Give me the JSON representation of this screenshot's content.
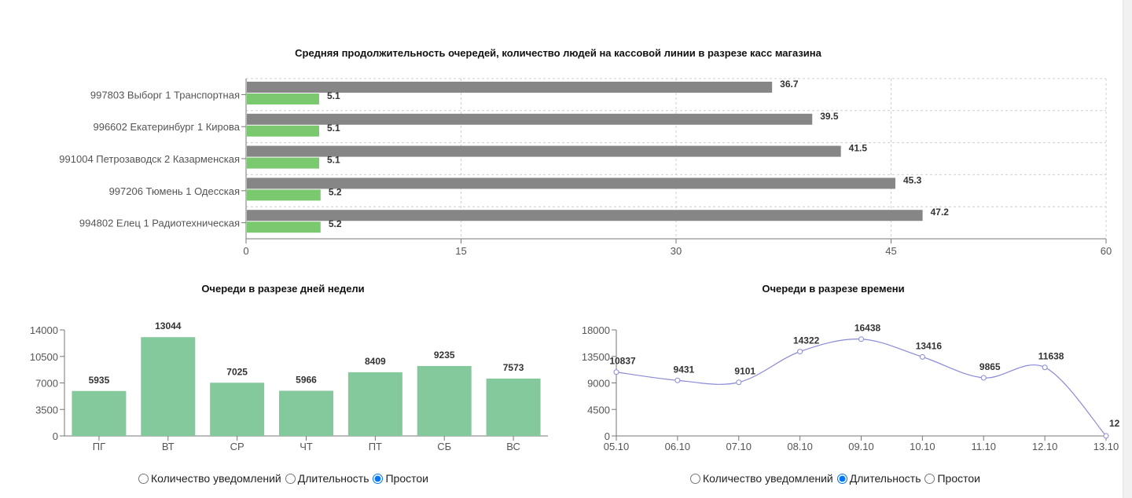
{
  "charts": {
    "top": {
      "title": "Средняя продолжительность очередей, количество людей на кассовой линии в разрезе касс магазина"
    },
    "days": {
      "title": "Очереди в разрезе дней недели"
    },
    "time": {
      "title": "Очереди в разрезе времени"
    }
  },
  "radios_days": {
    "opt1": "Количество уведомлений",
    "opt2": "Длительность",
    "opt3": "Простои",
    "selected": "opt3"
  },
  "radios_time": {
    "opt1": "Количество уведомлений",
    "opt2": "Длительность",
    "opt3": "Простои",
    "selected": "opt2"
  },
  "chart_data": [
    {
      "type": "bar",
      "orientation": "horizontal",
      "title": "Средняя продолжительность очередей, количество людей на кассовой линии в разрезе касс магазина",
      "categories": [
        "997803 Выборг 1 Транспортная",
        "996602 Екатеринбург 1 Кирова",
        "991004 Петрозаводск 2 Казарменская",
        "997206 Тюмень 1 Одесская",
        "994802 Елец 1 Радиотехническая"
      ],
      "series": [
        {
          "values": [
            36.7,
            39.5,
            41.5,
            45.3,
            47.2
          ],
          "color": "#868686"
        },
        {
          "values": [
            5.1,
            5.1,
            5.1,
            5.2,
            5.2
          ],
          "color": "#7bc96f"
        }
      ],
      "xlim": [
        0,
        60
      ],
      "xticks": [
        0,
        15,
        30,
        45,
        60
      ],
      "grid": true
    },
    {
      "type": "bar",
      "title": "Очереди в разрезе дней недели",
      "categories": [
        "ПГ",
        "ВТ",
        "СР",
        "ЧТ",
        "ПТ",
        "СБ",
        "ВС"
      ],
      "values": [
        5935,
        13044,
        7025,
        5966,
        8409,
        9235,
        7573
      ],
      "color": "#84c99c",
      "ylim": [
        0,
        14000
      ],
      "yticks": [
        0,
        3500,
        7000,
        10500,
        14000
      ]
    },
    {
      "type": "line",
      "title": "Очереди в разрезе времени",
      "x": [
        "05.10",
        "06.10",
        "07.10",
        "08.10",
        "09.10",
        "10.10",
        "11.10",
        "12.10",
        "13.10"
      ],
      "values": [
        10837,
        9431,
        9101,
        14322,
        16438,
        13416,
        9865,
        11638,
        12
      ],
      "color": "#8a8ad6",
      "ylim": [
        0,
        18000
      ],
      "yticks": [
        0,
        4500,
        9000,
        13500,
        18000
      ],
      "smooth": true
    }
  ]
}
